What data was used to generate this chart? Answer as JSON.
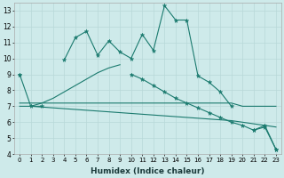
{
  "xlabel": "Humidex (Indice chaleur)",
  "x": [
    0,
    1,
    2,
    3,
    4,
    5,
    6,
    7,
    8,
    9,
    10,
    11,
    12,
    13,
    14,
    15,
    16,
    17,
    18,
    19,
    20,
    21,
    22,
    23
  ],
  "jagged": [
    9,
    7,
    7,
    null,
    9.9,
    11.3,
    11.7,
    10.2,
    11.1,
    10.4,
    10.0,
    11.5,
    10.5,
    13.3,
    12.4,
    12.4,
    8.9,
    8.5,
    7.9,
    7.0,
    null,
    5.5,
    5.8,
    4.3
  ],
  "rising": [
    null,
    7.0,
    7.2,
    7.5,
    7.9,
    8.3,
    8.7,
    9.1,
    9.4,
    9.6,
    null,
    null,
    null,
    null,
    null,
    null,
    null,
    null,
    null,
    null,
    null,
    null,
    null,
    null
  ],
  "descending": [
    9.0,
    null,
    null,
    null,
    null,
    null,
    null,
    null,
    null,
    null,
    9.0,
    8.7,
    8.3,
    7.9,
    7.5,
    7.2,
    6.9,
    6.6,
    6.3,
    6.0,
    5.8,
    5.5,
    5.7,
    4.3
  ],
  "flat": [
    7.2,
    7.2,
    7.2,
    7.2,
    7.2,
    7.2,
    7.2,
    7.2,
    7.2,
    7.2,
    7.2,
    7.2,
    7.2,
    7.2,
    7.2,
    7.2,
    7.2,
    7.2,
    7.2,
    7.2,
    7.0,
    7.0,
    7.0,
    7.0
  ],
  "declining_flat": [
    7.0,
    7.0,
    6.95,
    6.9,
    6.85,
    6.8,
    6.75,
    6.7,
    6.65,
    6.6,
    6.55,
    6.5,
    6.45,
    6.4,
    6.35,
    6.3,
    6.25,
    6.2,
    6.15,
    6.1,
    6.0,
    5.9,
    5.8,
    5.7
  ],
  "color": "#1a7a6e",
  "bg_color": "#ceeaea",
  "grid_color": "#b8d8d8",
  "ylim": [
    4,
    13.5
  ],
  "yticks": [
    4,
    5,
    6,
    7,
    8,
    9,
    10,
    11,
    12,
    13
  ],
  "xlim": [
    -0.5,
    23.5
  ]
}
